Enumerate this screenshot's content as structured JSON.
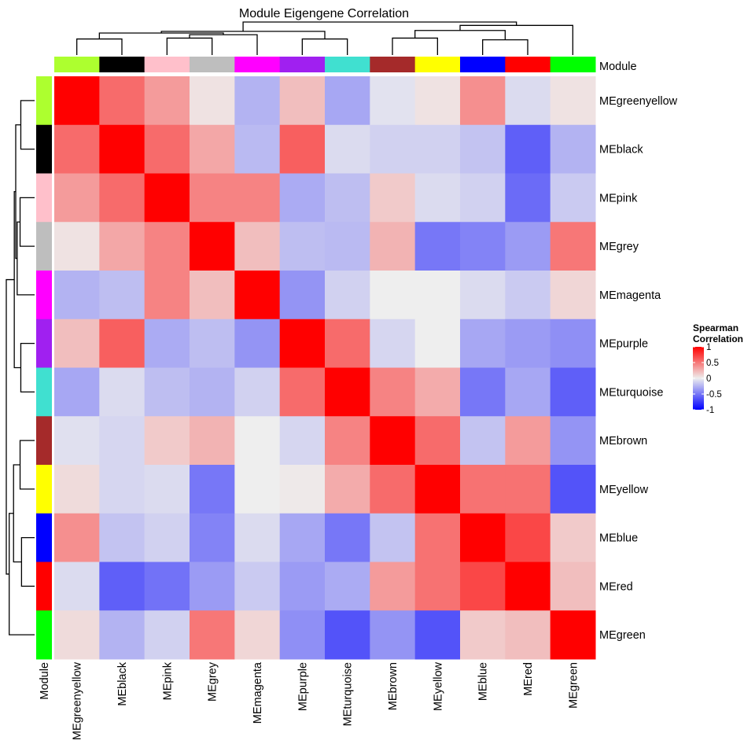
{
  "chart_data": {
    "type": "heatmap",
    "title": "Module Eigengene Correlation",
    "annotation_label": "Module",
    "legend": {
      "title_lines": [
        "Spearman",
        "Correlation"
      ],
      "ticks": [
        1,
        0.5,
        0,
        -0.5,
        -1
      ],
      "tick_labels": [
        "1",
        "0.5",
        "0",
        "-0.5",
        "-1"
      ],
      "range": [
        -1,
        1
      ],
      "placement": "right",
      "low_color": "#0000FF",
      "mid_color": "#EEEEEE",
      "high_color": "#FF0000"
    },
    "rows": [
      "MEgreenyellow",
      "MEblack",
      "MEpink",
      "MEgrey",
      "MEmagenta",
      "MEpurple",
      "MEturquoise",
      "MEbrown",
      "MEyellow",
      "MEblue",
      "MEred",
      "MEgreen"
    ],
    "columns": [
      "MEgreenyellow",
      "MEblack",
      "MEpink",
      "MEgrey",
      "MEmagenta",
      "MEpurple",
      "MEturquoise",
      "MEbrown",
      "MEyellow",
      "MEblue",
      "MEred",
      "MEgreen"
    ],
    "module_colors": [
      "#ADFF2F",
      "#000000",
      "#FFC0CB",
      "#BEBEBE",
      "#FF00FF",
      "#A020F0",
      "#40E0D0",
      "#A52A2A",
      "#FFFF00",
      "#0000FF",
      "#FF0000",
      "#00FF00"
    ],
    "values": [
      [
        1.0,
        0.55,
        0.35,
        0.05,
        -0.25,
        0.2,
        -0.3,
        -0.05,
        0.05,
        0.4,
        -0.08,
        0.05
      ],
      [
        0.55,
        1.0,
        0.55,
        0.3,
        -0.22,
        0.6,
        -0.08,
        -0.12,
        -0.12,
        -0.18,
        -0.6,
        -0.25
      ],
      [
        0.35,
        0.55,
        1.0,
        0.45,
        0.45,
        -0.28,
        -0.2,
        0.15,
        -0.08,
        -0.12,
        -0.55,
        -0.15
      ],
      [
        0.05,
        0.3,
        0.45,
        1.0,
        0.2,
        -0.2,
        -0.22,
        0.25,
        -0.5,
        -0.45,
        -0.35,
        0.5
      ],
      [
        -0.25,
        -0.2,
        0.45,
        0.2,
        1.0,
        -0.38,
        -0.12,
        0.0,
        0.0,
        -0.08,
        -0.15,
        0.1
      ],
      [
        0.2,
        0.6,
        -0.28,
        -0.2,
        -0.38,
        1.0,
        0.55,
        -0.1,
        0.0,
        -0.3,
        -0.35,
        -0.4
      ],
      [
        -0.3,
        -0.08,
        -0.2,
        -0.25,
        -0.12,
        0.55,
        1.0,
        0.45,
        0.28,
        -0.5,
        -0.3,
        -0.6
      ],
      [
        -0.06,
        -0.1,
        0.15,
        0.25,
        0.0,
        -0.1,
        0.45,
        1.0,
        0.55,
        -0.18,
        0.35,
        -0.38
      ],
      [
        0.08,
        -0.1,
        -0.08,
        -0.5,
        0.0,
        0.02,
        0.28,
        0.55,
        1.0,
        0.52,
        0.52,
        -0.65
      ],
      [
        0.4,
        -0.18,
        -0.12,
        -0.45,
        -0.08,
        -0.3,
        -0.5,
        -0.18,
        0.52,
        1.0,
        0.7,
        0.15
      ],
      [
        -0.08,
        -0.6,
        -0.52,
        -0.35,
        -0.15,
        -0.35,
        -0.28,
        0.35,
        0.52,
        0.7,
        1.0,
        0.2
      ],
      [
        0.08,
        -0.25,
        -0.12,
        0.5,
        0.1,
        -0.4,
        -0.65,
        -0.38,
        -0.65,
        0.15,
        0.2,
        1.0
      ]
    ],
    "column_dendrogram_order": [
      "MEgreenyellow",
      "MEblack",
      "MEpink",
      "MEgrey",
      "MEmagenta",
      "MEpurple",
      "MEturquoise",
      "MEbrown",
      "MEyellow",
      "MEblue",
      "MEred",
      "MEgreen"
    ],
    "row_dendrogram_order": [
      "MEgreenyellow",
      "MEblack",
      "MEpink",
      "MEgrey",
      "MEmagenta",
      "MEpurple",
      "MEturquoise",
      "MEbrown",
      "MEyellow",
      "MEblue",
      "MEred",
      "MEgreen"
    ]
  }
}
